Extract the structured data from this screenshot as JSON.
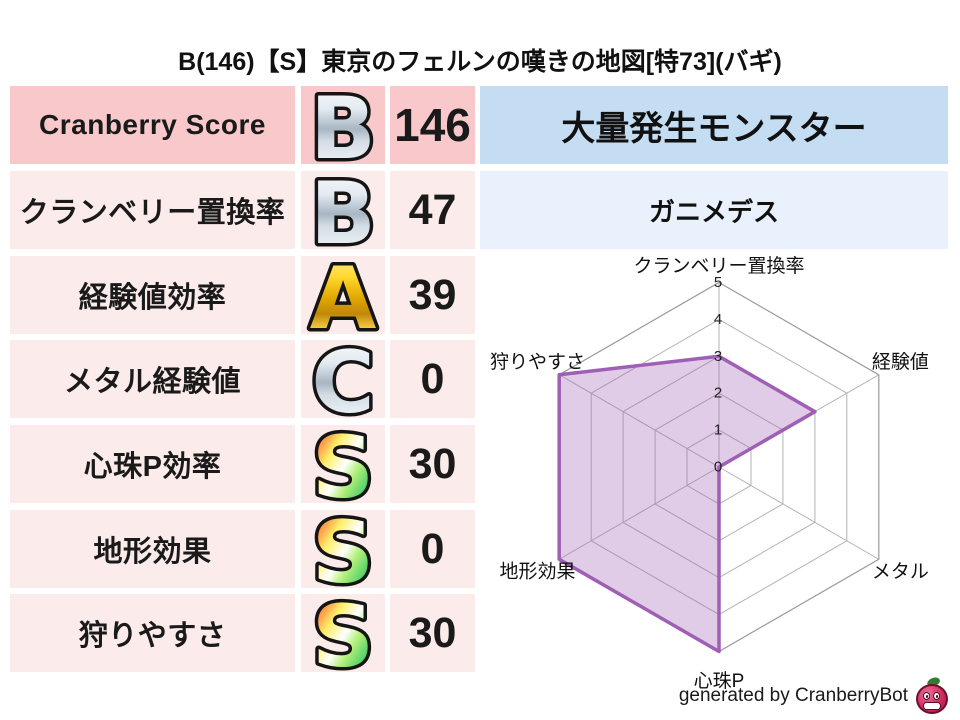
{
  "title": "B(146)【S】東京のフェルンの嘆きの地図[特73](バギ)",
  "table": {
    "rows": [
      {
        "label": "Cranberry Score",
        "grade": "B",
        "grade_style": "silver",
        "value": "146"
      },
      {
        "label": "クランベリー置換率",
        "grade": "B",
        "grade_style": "silver",
        "value": "47"
      },
      {
        "label": "経験値効率",
        "grade": "A",
        "grade_style": "gold",
        "value": "39"
      },
      {
        "label": "メタル経験値",
        "grade": "C",
        "grade_style": "silver",
        "value": "0"
      },
      {
        "label": "心珠P効率",
        "grade": "S",
        "grade_style": "rainbow",
        "value": "30"
      },
      {
        "label": "地形効果",
        "grade": "S",
        "grade_style": "rainbow",
        "value": "0"
      },
      {
        "label": "狩りやすさ",
        "grade": "S",
        "grade_style": "rainbow",
        "value": "30"
      }
    ]
  },
  "monster_panel": {
    "header": "大量発生モンスター",
    "name": "ガニメデス"
  },
  "chart_data": {
    "type": "radar",
    "categories": [
      "クランベリー置換率",
      "経験値",
      "メタル",
      "心珠P",
      "地形効果",
      "狩りやすさ"
    ],
    "values": [
      3,
      3,
      0,
      5,
      5,
      5
    ],
    "rmin": 0,
    "rmax": 5,
    "ticks": [
      "0",
      "1",
      "2",
      "3",
      "4",
      "5"
    ],
    "grid": true,
    "legend": "none",
    "stroke_color": "#9e5fb5",
    "fill_color": "#9e5fb5",
    "fill_opacity": 0.32,
    "grid_color": "#b3b3b3"
  },
  "credit": {
    "text": "generated by CranberryBot",
    "icon": "cranberry-bot-logo"
  },
  "colors": {
    "row_primary_bg": "#f8c8cb",
    "row_bg": "#fcebeb",
    "header_blue_bg": "#c5ddf3",
    "subheader_blue_bg": "#e9f2fc",
    "accent_purple": "#9e5fb5",
    "grade_silver": "#b9c5d0",
    "grade_gold": "#f2c218"
  }
}
